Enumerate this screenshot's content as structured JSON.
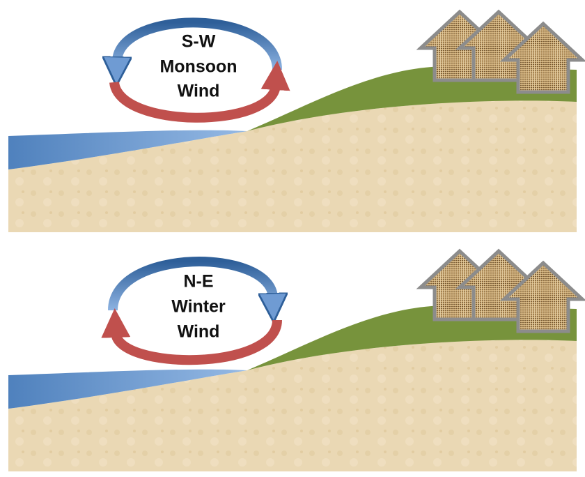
{
  "panels": [
    {
      "label_lines": [
        "S-W",
        "Monsoon",
        "Wind"
      ]
    },
    {
      "label_lines": [
        "N-E",
        "Winter",
        "Wind"
      ]
    }
  ]
}
